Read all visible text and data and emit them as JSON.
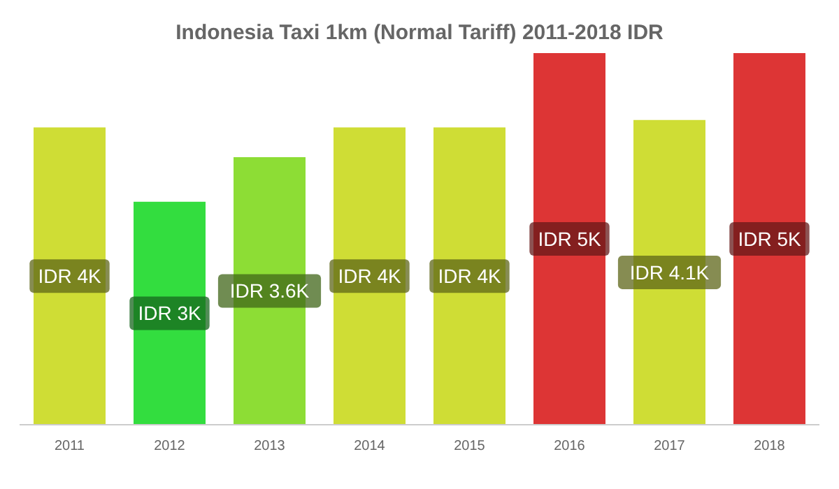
{
  "chart_data": {
    "type": "bar",
    "title": "Indonesia Taxi 1km (Normal Tariff) 2011-2018 IDR",
    "categories": [
      "2011",
      "2012",
      "2013",
      "2014",
      "2015",
      "2016",
      "2017",
      "2018"
    ],
    "values": [
      4000,
      3000,
      3600,
      4000,
      4000,
      5000,
      4100,
      5000
    ],
    "colors": [
      "#cfdd35",
      "#33dd3f",
      "#8ddd35",
      "#cfdd35",
      "#cfdd35",
      "#dd3535",
      "#cfdd35",
      "#dd3535"
    ],
    "value_labels": [
      "IDR 4K",
      "IDR 3K",
      "IDR 3.6K",
      "IDR 4K",
      "IDR 4K",
      "IDR 5K",
      "IDR 4.1K",
      "IDR 5K"
    ]
  }
}
